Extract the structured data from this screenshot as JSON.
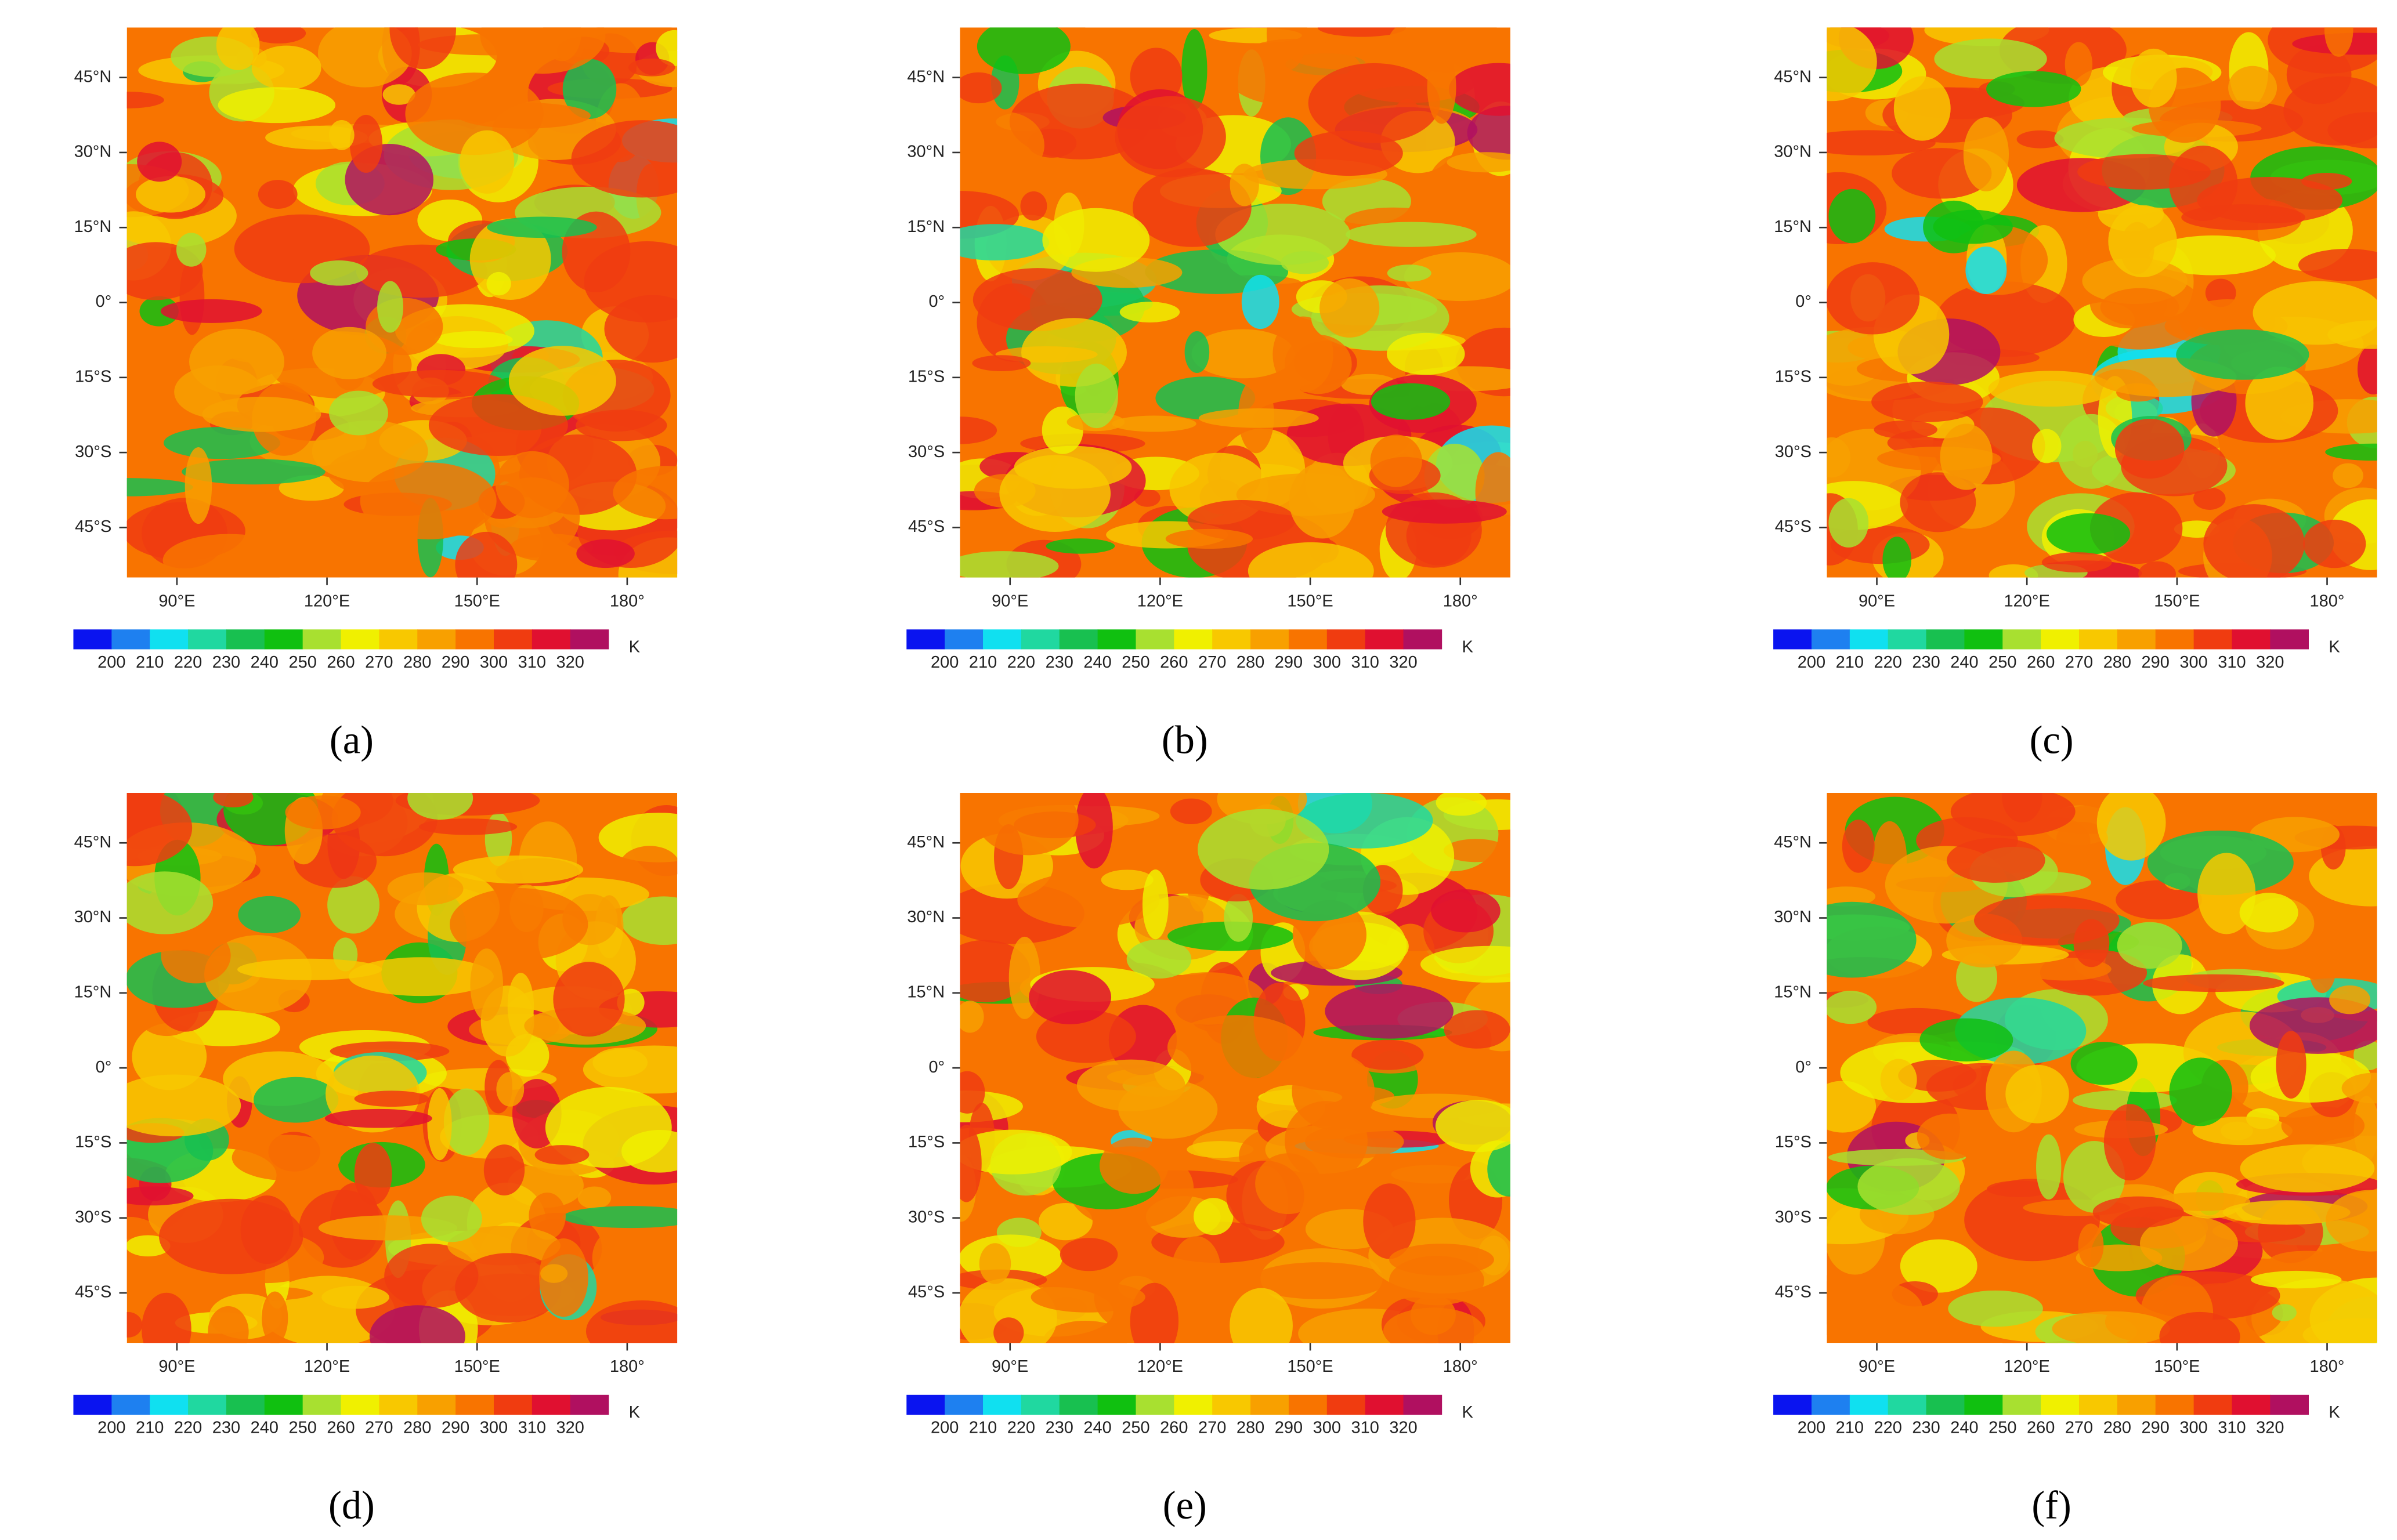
{
  "panels": [
    {
      "label": "(a)"
    },
    {
      "label": "(b)"
    },
    {
      "label": "(c)"
    },
    {
      "label": "(d)"
    },
    {
      "label": "(e)"
    },
    {
      "label": "(f)"
    }
  ],
  "lat_lim": [
    -55,
    55
  ],
  "lon_lim": [
    80,
    190
  ],
  "lat_ticks": [
    {
      "value": 45,
      "label": "45°N"
    },
    {
      "value": 30,
      "label": "30°N"
    },
    {
      "value": 15,
      "label": "15°N"
    },
    {
      "value": 0,
      "label": "0°"
    },
    {
      "value": -15,
      "label": "15°S"
    },
    {
      "value": -30,
      "label": "30°S"
    },
    {
      "value": -45,
      "label": "45°S"
    }
  ],
  "lon_ticks": [
    {
      "value": 90,
      "label": "90°E"
    },
    {
      "value": 120,
      "label": "120°E"
    },
    {
      "value": 150,
      "label": "150°E"
    },
    {
      "value": 180,
      "label": "180°"
    }
  ],
  "colorbar": {
    "lim": [
      190,
      330
    ],
    "ticks": [
      200,
      210,
      220,
      230,
      240,
      250,
      260,
      270,
      280,
      290,
      300,
      310,
      320
    ],
    "unit": "K",
    "colors": [
      "#0a14f0",
      "#1e80f0",
      "#10e0f0",
      "#20d8a0",
      "#18c050",
      "#10c010",
      "#a8e030",
      "#f0f000",
      "#f8c800",
      "#f8a000",
      "#f87400",
      "#f03c10",
      "#e01030",
      "#b01060"
    ]
  }
}
